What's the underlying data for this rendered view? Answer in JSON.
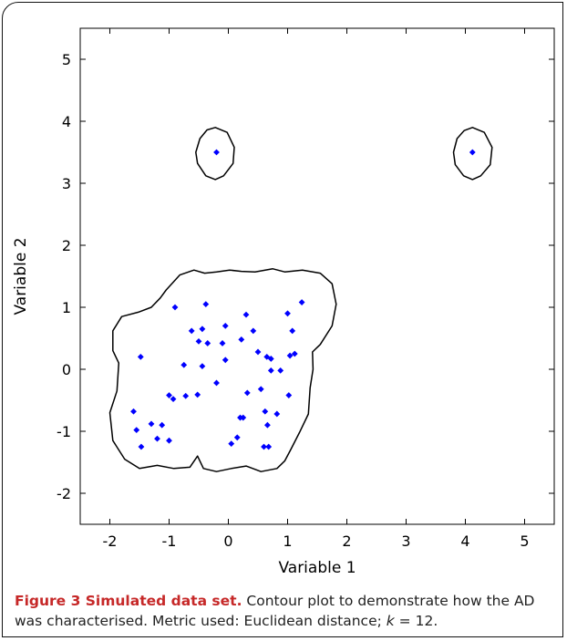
{
  "chart_data": {
    "type": "scatter",
    "title": "",
    "xlabel": "Variable 1",
    "ylabel": "Variable 2",
    "xlim": [
      -2.5,
      5.5
    ],
    "ylim": [
      -2.5,
      5.5
    ],
    "xticks": [
      -2,
      -1,
      0,
      1,
      2,
      3,
      4,
      5
    ],
    "yticks": [
      -2,
      -1,
      0,
      1,
      2,
      3,
      4,
      5
    ],
    "grid": false,
    "point_color": "#0000ff",
    "contour_color": "#000000",
    "points": [
      [
        -0.2,
        3.5
      ],
      [
        4.12,
        3.5
      ],
      [
        -1.6,
        -0.68
      ],
      [
        -1.55,
        -0.98
      ],
      [
        -1.47,
        -1.25
      ],
      [
        -1.48,
        0.2
      ],
      [
        -1.3,
        -0.88
      ],
      [
        -1.2,
        -1.12
      ],
      [
        -1.12,
        -0.9
      ],
      [
        -1.0,
        -1.15
      ],
      [
        -1.0,
        -0.42
      ],
      [
        -0.93,
        -0.48
      ],
      [
        -0.9,
        1.0
      ],
      [
        -0.75,
        0.07
      ],
      [
        -0.72,
        -0.43
      ],
      [
        -0.62,
        0.62
      ],
      [
        -0.52,
        -0.41
      ],
      [
        -0.5,
        0.45
      ],
      [
        -0.44,
        0.65
      ],
      [
        -0.44,
        0.05
      ],
      [
        -0.38,
        1.05
      ],
      [
        -0.35,
        0.42
      ],
      [
        -0.2,
        -0.22
      ],
      [
        -0.1,
        0.42
      ],
      [
        -0.05,
        0.15
      ],
      [
        -0.05,
        0.7
      ],
      [
        0.05,
        -1.2
      ],
      [
        0.15,
        -1.1
      ],
      [
        0.2,
        -0.78
      ],
      [
        0.22,
        0.48
      ],
      [
        0.25,
        -0.78
      ],
      [
        0.3,
        0.88
      ],
      [
        0.32,
        -0.38
      ],
      [
        0.42,
        0.62
      ],
      [
        0.5,
        0.28
      ],
      [
        0.55,
        -0.32
      ],
      [
        0.6,
        -1.25
      ],
      [
        0.62,
        -0.68
      ],
      [
        0.65,
        0.2
      ],
      [
        0.66,
        -0.9
      ],
      [
        0.68,
        -1.25
      ],
      [
        0.72,
        0.17
      ],
      [
        0.72,
        -0.02
      ],
      [
        0.82,
        -0.72
      ],
      [
        0.88,
        -0.02
      ],
      [
        1.0,
        0.9
      ],
      [
        1.02,
        -0.42
      ],
      [
        1.04,
        0.22
      ],
      [
        1.08,
        0.62
      ],
      [
        1.12,
        0.25
      ],
      [
        1.24,
        1.08
      ]
    ],
    "contours": [
      [
        [
          -0.22,
          3.9
        ],
        [
          -0.02,
          3.82
        ],
        [
          0.1,
          3.58
        ],
        [
          0.08,
          3.32
        ],
        [
          -0.08,
          3.12
        ],
        [
          -0.22,
          3.06
        ],
        [
          -0.38,
          3.12
        ],
        [
          -0.52,
          3.32
        ],
        [
          -0.55,
          3.5
        ],
        [
          -0.48,
          3.72
        ],
        [
          -0.36,
          3.86
        ]
      ],
      [
        [
          4.12,
          3.9
        ],
        [
          4.32,
          3.82
        ],
        [
          4.45,
          3.58
        ],
        [
          4.42,
          3.3
        ],
        [
          4.26,
          3.12
        ],
        [
          4.12,
          3.06
        ],
        [
          3.97,
          3.12
        ],
        [
          3.83,
          3.3
        ],
        [
          3.8,
          3.5
        ],
        [
          3.86,
          3.72
        ],
        [
          3.98,
          3.85
        ]
      ],
      [
        [
          -1.05,
          1.28
        ],
        [
          -0.82,
          1.52
        ],
        [
          -0.58,
          1.6
        ],
        [
          -0.4,
          1.55
        ],
        [
          -0.2,
          1.57
        ],
        [
          0.02,
          1.6
        ],
        [
          0.22,
          1.58
        ],
        [
          0.45,
          1.57
        ],
        [
          0.75,
          1.62
        ],
        [
          0.95,
          1.57
        ],
        [
          1.25,
          1.6
        ],
        [
          1.55,
          1.55
        ],
        [
          1.75,
          1.38
        ],
        [
          1.82,
          1.05
        ],
        [
          1.75,
          0.7
        ],
        [
          1.55,
          0.4
        ],
        [
          1.42,
          0.28
        ],
        [
          1.43,
          0.0
        ],
        [
          1.38,
          -0.3
        ],
        [
          1.35,
          -0.72
        ],
        [
          1.2,
          -1.02
        ],
        [
          1.05,
          -1.3
        ],
        [
          0.95,
          -1.48
        ],
        [
          0.82,
          -1.6
        ],
        [
          0.55,
          -1.65
        ],
        [
          0.3,
          -1.56
        ],
        [
          0.05,
          -1.6
        ],
        [
          -0.2,
          -1.65
        ],
        [
          -0.42,
          -1.6
        ],
        [
          -0.52,
          -1.4
        ],
        [
          -0.65,
          -1.58
        ],
        [
          -0.92,
          -1.6
        ],
        [
          -1.2,
          -1.55
        ],
        [
          -1.5,
          -1.6
        ],
        [
          -1.75,
          -1.45
        ],
        [
          -1.95,
          -1.15
        ],
        [
          -2.0,
          -0.7
        ],
        [
          -1.88,
          -0.35
        ],
        [
          -1.85,
          0.1
        ],
        [
          -1.95,
          0.3
        ],
        [
          -1.95,
          0.62
        ],
        [
          -1.8,
          0.85
        ],
        [
          -1.52,
          0.92
        ],
        [
          -1.3,
          1.0
        ],
        [
          -1.15,
          1.15
        ]
      ]
    ]
  },
  "caption": {
    "bold": "Figure 3 Simulated data set.",
    "text": " Contour plot to demonstrate how the AD was characterised. Metric used: Euclidean distance; ",
    "k_symbol": "k",
    "k_value": " = 12."
  }
}
